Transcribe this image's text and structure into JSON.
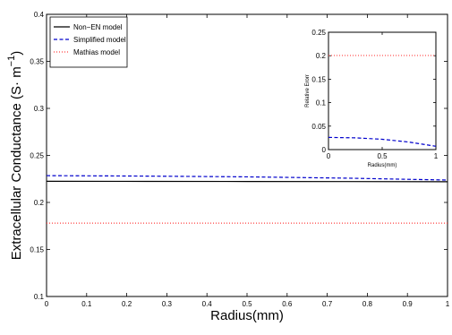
{
  "chart_data": [
    {
      "type": "line",
      "title": "",
      "xlabel": "Radius(mm)",
      "ylabel": "Extracellular Conductance (S· m",
      "ylabel_sup": "−1",
      "ylabel_close": ")",
      "xlim": [
        0,
        1
      ],
      "ylim": [
        0.1,
        0.4
      ],
      "x_ticks": [
        0,
        0.1,
        0.2,
        0.3,
        0.4,
        0.5,
        0.6,
        0.7,
        0.8,
        0.9,
        1
      ],
      "x_tick_labels": [
        "0",
        "0.1",
        "0.2",
        "0.3",
        "0.4",
        "0.5",
        "0.6",
        "0.7",
        "0.8",
        "0.9",
        "1"
      ],
      "y_ticks": [
        0.1,
        0.15,
        0.2,
        0.25,
        0.3,
        0.35,
        0.4
      ],
      "y_tick_labels": [
        "0.1",
        "0.15",
        "0.2",
        "0.25",
        "0.3",
        "0.35",
        "0.4"
      ],
      "grid": false,
      "legend_position": "top-left",
      "series": [
        {
          "name": "Non−EN model",
          "color": "#000000",
          "dash": "solid",
          "x": [
            0,
            0.25,
            0.5,
            0.75,
            1
          ],
          "y": [
            0.2225,
            0.2224,
            0.2223,
            0.2222,
            0.222
          ]
        },
        {
          "name": "Simplified model",
          "color": "#0000cc",
          "dash": "dashed",
          "x": [
            0,
            0.25,
            0.5,
            0.75,
            1
          ],
          "y": [
            0.2285,
            0.228,
            0.2272,
            0.2258,
            0.2238
          ]
        },
        {
          "name": "Mathias model",
          "color": "#ff4040",
          "dash": "dotted",
          "x": [
            0,
            0.25,
            0.5,
            0.75,
            1
          ],
          "y": [
            0.178,
            0.178,
            0.178,
            0.178,
            0.178
          ]
        }
      ]
    },
    {
      "type": "line",
      "title": "",
      "inset": true,
      "xlabel": "Radius(mm)",
      "ylabel": "Relative Erorr",
      "xlim": [
        0,
        1
      ],
      "ylim": [
        0,
        0.25
      ],
      "x_ticks": [
        0,
        0.5,
        1
      ],
      "x_tick_labels": [
        "0",
        "0.5",
        "1"
      ],
      "y_ticks": [
        0,
        0.05,
        0.1,
        0.15,
        0.2,
        0.25
      ],
      "y_tick_labels": [
        "0",
        "0.05",
        "0.1",
        "0.15",
        "0.2",
        "0.25"
      ],
      "series": [
        {
          "color": "#ff4040",
          "dash": "dotted",
          "x": [
            0,
            0.25,
            0.5,
            0.75,
            1
          ],
          "y": [
            0.2005,
            0.2005,
            0.2005,
            0.2005,
            0.2005
          ]
        },
        {
          "color": "#0000cc",
          "dash": "dashed",
          "x": [
            0,
            0.25,
            0.5,
            0.75,
            1
          ],
          "y": [
            0.026,
            0.025,
            0.022,
            0.016,
            0.007
          ]
        }
      ]
    }
  ]
}
